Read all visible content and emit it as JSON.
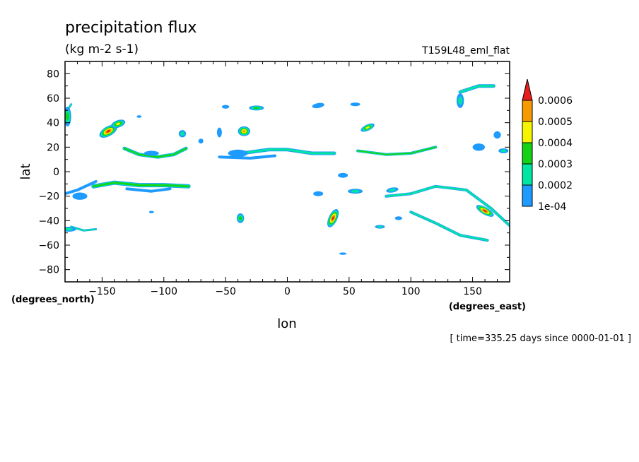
{
  "chart_data": {
    "type": "heatmap",
    "title": "precipitation flux",
    "units": "(kg m-2 s-1)",
    "run_label": "T159L48_eml_flat",
    "xlabel": "lon",
    "ylabel": "lat",
    "x_units": "(degrees_east)",
    "y_units": "(degrees_north)",
    "time_label": "[ time=335.25 days since 0000-01-01 ]",
    "xlim": [
      -180,
      180
    ],
    "ylim": [
      -90,
      90
    ],
    "x_ticks": [
      -150,
      -100,
      -50,
      0,
      50,
      100,
      150
    ],
    "y_ticks": [
      80,
      60,
      40,
      20,
      0,
      -20,
      -40,
      -60,
      -80
    ],
    "colorbar": {
      "levels": [
        "0.0006",
        "0.0005",
        "0.0004",
        "0.0003",
        "0.0002",
        "1e-04"
      ],
      "colors": [
        "#1e9bff",
        "#00e6a0",
        "#14d214",
        "#f5f500",
        "#f59a00",
        "#e61e1e"
      ],
      "extend": "max"
    },
    "blobs": [
      {
        "lon": -145,
        "lat": 33,
        "rx": 8,
        "ry": 4,
        "angle": -30,
        "level": 6
      },
      {
        "lon": -137,
        "lat": 39,
        "rx": 6,
        "ry": 3,
        "angle": -20,
        "level": 4
      },
      {
        "lon": -178,
        "lat": 45,
        "rx": 3,
        "ry": 8,
        "angle": 0,
        "level": 3
      },
      {
        "lon": -177,
        "lat": -47,
        "rx": 6,
        "ry": 2,
        "angle": 0,
        "level": 2
      },
      {
        "lon": -35,
        "lat": 33,
        "rx": 5,
        "ry": 4,
        "angle": 0,
        "level": 5
      },
      {
        "lon": -25,
        "lat": 52,
        "rx": 6,
        "ry": 2,
        "angle": 0,
        "level": 3
      },
      {
        "lon": -55,
        "lat": 32,
        "rx": 2,
        "ry": 4,
        "angle": 0,
        "level": 1
      },
      {
        "lon": -85,
        "lat": 31,
        "rx": 3,
        "ry": 3,
        "angle": 0,
        "level": 2
      },
      {
        "lon": -50,
        "lat": 53,
        "rx": 3,
        "ry": 1.5,
        "angle": 0,
        "level": 1
      },
      {
        "lon": 25,
        "lat": 54,
        "rx": 5,
        "ry": 2,
        "angle": -10,
        "level": 1
      },
      {
        "lon": 65,
        "lat": 36,
        "rx": 6,
        "ry": 2.5,
        "angle": -25,
        "level": 4
      },
      {
        "lon": 55,
        "lat": 55,
        "rx": 4,
        "ry": 1.5,
        "angle": 0,
        "level": 1
      },
      {
        "lon": 37,
        "lat": -38,
        "rx": 3.5,
        "ry": 8,
        "angle": 25,
        "level": 6
      },
      {
        "lon": -38,
        "lat": -38,
        "rx": 3,
        "ry": 4,
        "angle": 0,
        "level": 3
      },
      {
        "lon": 75,
        "lat": -45,
        "rx": 4,
        "ry": 1.5,
        "angle": 0,
        "level": 2
      },
      {
        "lon": 90,
        "lat": -38,
        "rx": 3,
        "ry": 1.5,
        "angle": 0,
        "level": 1
      },
      {
        "lon": 45,
        "lat": -67,
        "rx": 3,
        "ry": 1,
        "angle": 0,
        "level": 1
      },
      {
        "lon": -110,
        "lat": -33,
        "rx": 2,
        "ry": 1,
        "angle": 0,
        "level": 1
      },
      {
        "lon": 160,
        "lat": -32,
        "rx": 8,
        "ry": 3,
        "angle": 30,
        "level": 6
      },
      {
        "lon": 140,
        "lat": 58,
        "rx": 3,
        "ry": 6,
        "angle": 0,
        "level": 2
      },
      {
        "lon": 170,
        "lat": 30,
        "rx": 3,
        "ry": 3,
        "angle": 0,
        "level": 1
      },
      {
        "lon": 175,
        "lat": 17,
        "rx": 4,
        "ry": 2,
        "angle": 0,
        "level": 2
      },
      {
        "lon": 155,
        "lat": 20,
        "rx": 5,
        "ry": 3,
        "angle": 0,
        "level": 1
      },
      {
        "lon": 25,
        "lat": -18,
        "rx": 4,
        "ry": 2,
        "angle": 0,
        "level": 1
      },
      {
        "lon": 55,
        "lat": -16,
        "rx": 6,
        "ry": 2,
        "angle": 0,
        "level": 2
      },
      {
        "lon": 85,
        "lat": -15,
        "rx": 5,
        "ry": 2,
        "angle": -10,
        "level": 2
      },
      {
        "lon": -168,
        "lat": -20,
        "rx": 6,
        "ry": 3,
        "angle": 0,
        "level": 1
      },
      {
        "lon": 45,
        "lat": -3,
        "rx": 4,
        "ry": 2,
        "angle": 0,
        "level": 1
      },
      {
        "lon": -110,
        "lat": 15,
        "rx": 6,
        "ry": 2,
        "angle": 0,
        "level": 1
      },
      {
        "lon": -40,
        "lat": 15,
        "rx": 8,
        "ry": 3,
        "angle": 0,
        "level": 1
      },
      {
        "lon": -70,
        "lat": 25,
        "rx": 2,
        "ry": 2,
        "angle": 0,
        "level": 1
      },
      {
        "lon": -120,
        "lat": 45,
        "rx": 2,
        "ry": 1,
        "angle": 0,
        "level": 1
      }
    ],
    "bands": [
      {
        "points": [
          [
            -132,
            19
          ],
          [
            -120,
            14
          ],
          [
            -105,
            12
          ],
          [
            -92,
            14
          ],
          [
            -82,
            19
          ]
        ],
        "width": 5,
        "level": 3
      },
      {
        "points": [
          [
            -157,
            -12
          ],
          [
            -140,
            -9
          ],
          [
            -120,
            -11
          ],
          [
            -100,
            -11
          ],
          [
            -80,
            -12
          ]
        ],
        "width": 6,
        "level": 3
      },
      {
        "points": [
          [
            -130,
            -14
          ],
          [
            -110,
            -16
          ],
          [
            -95,
            -14
          ]
        ],
        "width": 4,
        "level": 1
      },
      {
        "points": [
          [
            -37,
            15
          ],
          [
            -15,
            18
          ],
          [
            0,
            18
          ],
          [
            20,
            15
          ],
          [
            38,
            15
          ]
        ],
        "width": 5,
        "level": 2
      },
      {
        "points": [
          [
            -55,
            12
          ],
          [
            -30,
            11
          ],
          [
            -10,
            13
          ]
        ],
        "width": 4,
        "level": 1
      },
      {
        "points": [
          [
            57,
            17
          ],
          [
            80,
            14
          ],
          [
            100,
            15
          ],
          [
            120,
            20
          ]
        ],
        "width": 4,
        "level": 3
      },
      {
        "points": [
          [
            80,
            -20
          ],
          [
            100,
            -18
          ],
          [
            120,
            -12
          ],
          [
            145,
            -15
          ],
          [
            165,
            -30
          ],
          [
            180,
            -44
          ]
        ],
        "width": 4,
        "level": 2
      },
      {
        "points": [
          [
            100,
            -33
          ],
          [
            120,
            -42
          ],
          [
            140,
            -52
          ],
          [
            162,
            -56
          ]
        ],
        "width": 4,
        "level": 2
      },
      {
        "points": [
          [
            140,
            65
          ],
          [
            155,
            70
          ],
          [
            167,
            70
          ]
        ],
        "width": 5,
        "level": 2
      },
      {
        "points": [
          [
            -175,
            -45
          ],
          [
            -165,
            -48
          ],
          [
            -155,
            -47
          ]
        ],
        "width": 3,
        "level": 2
      },
      {
        "points": [
          [
            -155,
            -8
          ],
          [
            -170,
            -15
          ],
          [
            -180,
            -18
          ]
        ],
        "width": 4,
        "level": 1
      },
      {
        "points": [
          [
            -180,
            47
          ],
          [
            -175,
            55
          ]
        ],
        "width": 3,
        "level": 2
      }
    ]
  }
}
